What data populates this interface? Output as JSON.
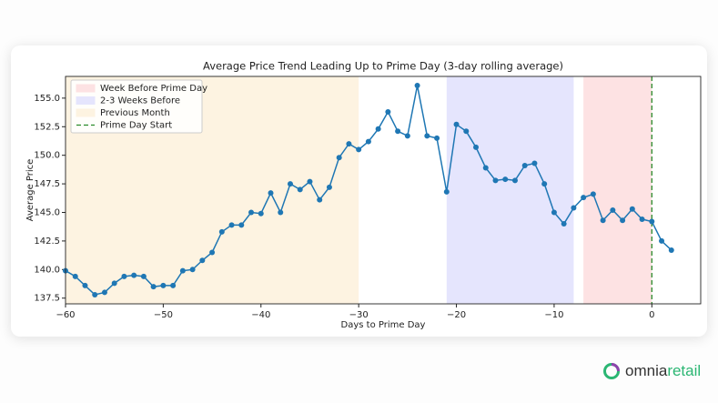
{
  "chart_data": {
    "type": "line",
    "title": "Average Price Trend Leading Up to Prime Day (3-day rolling average)",
    "x_label": "Days to Prime Day",
    "y_label": "Average Price",
    "x": [
      -60,
      -59,
      -58,
      -57,
      -56,
      -55,
      -54,
      -53,
      -52,
      -51,
      -50,
      -49,
      -48,
      -47,
      -46,
      -45,
      -44,
      -43,
      -42,
      -41,
      -40,
      -39,
      -38,
      -37,
      -36,
      -35,
      -34,
      -33,
      -32,
      -31,
      -30,
      -29,
      -28,
      -27,
      -26,
      -25,
      -24,
      -23,
      -22,
      -21,
      -20,
      -19,
      -18,
      -17,
      -16,
      -15,
      -14,
      -13,
      -12,
      -11,
      -10,
      -9,
      -8,
      -7,
      -6,
      -5,
      -4,
      -3,
      -2,
      -1,
      0,
      1,
      2
    ],
    "values": [
      139.9,
      139.4,
      138.6,
      137.8,
      138.0,
      138.8,
      139.4,
      139.5,
      139.4,
      138.5,
      138.6,
      138.6,
      139.9,
      140.0,
      140.8,
      141.5,
      143.3,
      143.9,
      143.9,
      145.0,
      144.9,
      146.7,
      145.0,
      147.5,
      147.0,
      147.7,
      146.1,
      147.2,
      149.8,
      151.0,
      150.5,
      151.2,
      152.3,
      153.8,
      152.1,
      151.7,
      156.1,
      151.7,
      151.5,
      146.8,
      152.7,
      152.1,
      150.7,
      148.9,
      147.8,
      147.9,
      147.8,
      149.1,
      149.3,
      147.5,
      145.0,
      144.0,
      145.4,
      146.3,
      146.6,
      144.3,
      145.2,
      144.3,
      145.3,
      144.4,
      144.2,
      142.5,
      141.7
    ],
    "color": "#1f77b4",
    "spans": [
      {
        "name": "Week Before Prime Day",
        "color": "#fde2e3",
        "range": [
          -7,
          0
        ]
      },
      {
        "name": "2-3 Weeks Before",
        "color": "#e5e5fd",
        "range": [
          -21,
          -8
        ]
      },
      {
        "name": "Previous Month",
        "color": "#fdf3e1",
        "range": [
          -60,
          -30
        ]
      }
    ],
    "vline": {
      "name": "Prime Day Start",
      "x": 0,
      "color": "#2a8a2a"
    },
    "xlim": [
      -60,
      5
    ],
    "ylim": [
      137.0,
      156.9
    ],
    "xticks": [
      {
        "value": -60,
        "label": "−60"
      },
      {
        "value": -50,
        "label": "−50"
      },
      {
        "value": -40,
        "label": "−40"
      },
      {
        "value": -30,
        "label": "−30"
      },
      {
        "value": -20,
        "label": "−20"
      },
      {
        "value": -10,
        "label": "−10"
      },
      0
    ],
    "yticks": [
      137.5,
      {
        "value": 140,
        "label": "140.0"
      },
      142.5,
      {
        "value": 145,
        "label": "145.0"
      },
      147.5,
      {
        "value": 150,
        "label": "150.0"
      },
      152.5,
      {
        "value": 155,
        "label": "155.0"
      }
    ],
    "legend": "upper left"
  },
  "branding": {
    "logo_part1": "omnia",
    "logo_part2": "retail"
  }
}
